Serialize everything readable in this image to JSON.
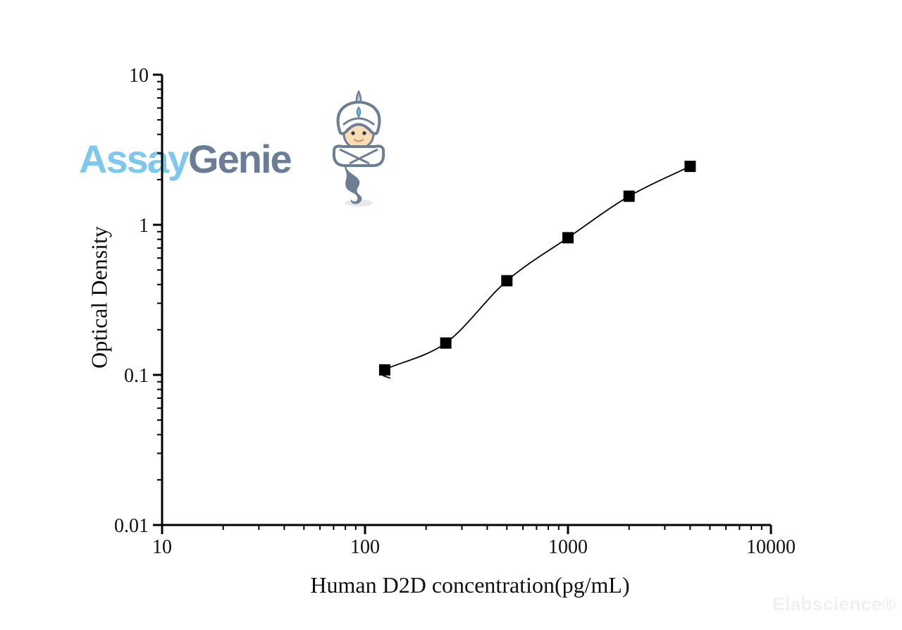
{
  "logo": {
    "part1": "Assay",
    "part2": "Genie",
    "part1_color": "#7ec8ed",
    "part2_color": "#6b7d96",
    "mascot": "genie-icon"
  },
  "watermark": {
    "text": "Elabscience®",
    "color": "#f0f0ee"
  },
  "chart_data": {
    "type": "scatter",
    "x": [
      125,
      250,
      500,
      1000,
      2000,
      4000
    ],
    "y": [
      0.108,
      0.163,
      0.424,
      0.82,
      1.55,
      2.45
    ],
    "title": "",
    "xlabel": "Human D2D concentration(pg/mL)",
    "ylabel": "Optical Density",
    "xlim": [
      10,
      10000
    ],
    "ylim": [
      0.01,
      10
    ],
    "xscale": "log",
    "yscale": "log",
    "x_major_ticks": [
      "10",
      "100",
      "1000",
      "10000"
    ],
    "y_major_ticks": [
      "10",
      "1",
      "0.1",
      "0.01"
    ],
    "grid": false,
    "legend": null,
    "marker": "filled-square",
    "marker_color": "#000000",
    "line_color": "#000000",
    "axis_color": "#000000"
  }
}
